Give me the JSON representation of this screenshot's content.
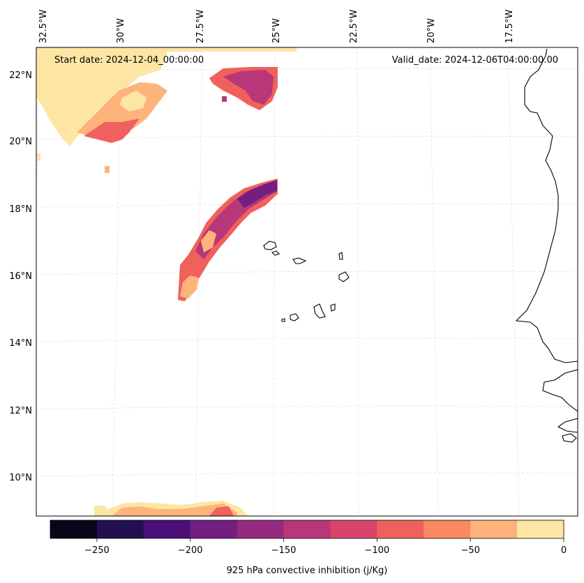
{
  "map": {
    "start_date_text": "Start date: 2024-12-04_00:00:00",
    "valid_date_text": "Valid_date: 2024-12-06T04:00:00.00",
    "longitude_labels": [
      "32.5°W",
      "30°W",
      "27.5°W",
      "25°W",
      "22.5°W",
      "20°W",
      "17.5°W"
    ],
    "latitude_labels": [
      "22°N",
      "20°N",
      "18°N",
      "16°N",
      "14°N",
      "12°N",
      "10°N"
    ],
    "colorbar": {
      "label": "925 hPa convective inhibition (j/Kg)",
      "tick_labels": [
        "−250",
        "−200",
        "−150",
        "−100",
        "−50",
        "0"
      ],
      "levels": [
        -275,
        -250,
        -225,
        -200,
        -175,
        -150,
        -125,
        -100,
        -75,
        -50,
        -25,
        0
      ],
      "colors": [
        "#07061a",
        "#221050",
        "#4b0f78",
        "#721f81",
        "#952b80",
        "#b73779",
        "#d8456c",
        "#f0605d",
        "#fb8861",
        "#feb37b",
        "#fde5a3"
      ]
    }
  }
}
